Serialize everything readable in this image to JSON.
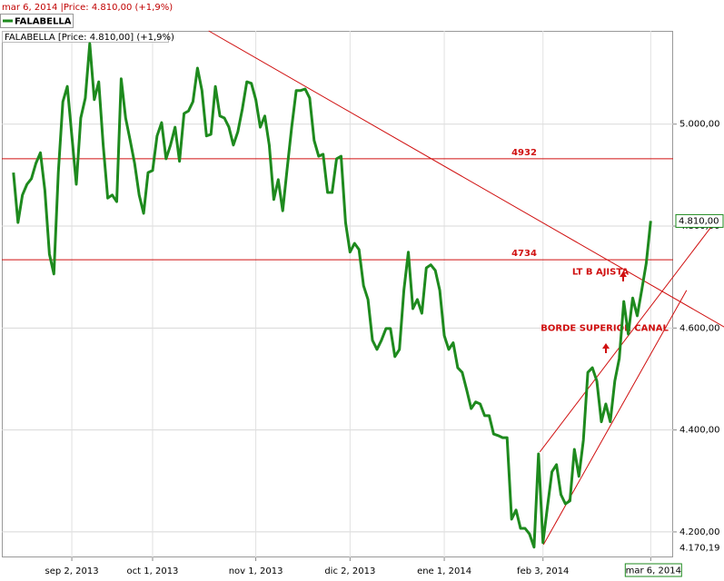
{
  "chart_data": {
    "type": "line",
    "header": "mar 6, 2014 |Price: 4.810,00 (+1,9%)",
    "info": "FALABELLA [Price: 4.810,00] (+1,9%)",
    "series": [
      {
        "name": "FALABELLA",
        "color": "#1e8a1e",
        "values": [
          4905,
          4807,
          4861,
          4882,
          4893,
          4923,
          4944,
          4870,
          4745,
          4706,
          4905,
          5044,
          5074,
          4977,
          4882,
          5012,
          5051,
          5158,
          5048,
          5083,
          4959,
          4855,
          4861,
          4848,
          5089,
          5012,
          4968,
          4923,
          4861,
          4825,
          4905,
          4909,
          4977,
          5003,
          4932,
          4959,
          4994,
          4927,
          5021,
          5026,
          5044,
          5110,
          5066,
          4977,
          4980,
          5074,
          5016,
          5012,
          4994,
          4959,
          4985,
          5030,
          5083,
          5080,
          5048,
          4994,
          5016,
          4959,
          4852,
          4891,
          4830,
          4914,
          4994,
          5066,
          5066,
          5069,
          5051,
          4968,
          4937,
          4941,
          4866,
          4866,
          4932,
          4937,
          4807,
          4749,
          4766,
          4754,
          4683,
          4656,
          4576,
          4558,
          4576,
          4599,
          4599,
          4544,
          4558,
          4674,
          4749,
          4638,
          4656,
          4629,
          4718,
          4724,
          4713,
          4674,
          4585,
          4558,
          4571,
          4522,
          4513,
          4478,
          4442,
          4455,
          4451,
          4428,
          4428,
          4392,
          4389,
          4385,
          4385,
          4225,
          4243,
          4207,
          4207,
          4196,
          4170.19,
          4353,
          4179,
          4250,
          4318,
          4332,
          4273,
          4255,
          4261,
          4362,
          4309,
          4380,
          4513,
          4522,
          4496,
          4416,
          4451,
          4416,
          4496,
          4540,
          4652,
          4588,
          4659,
          4624,
          4674,
          4727,
          4810
        ]
      }
    ],
    "xlim": [
      -2.6,
      147
    ],
    "xticks": [
      {
        "value": 13,
        "label": "sep 2, 2013"
      },
      {
        "value": 31,
        "label": "oct 1, 2013"
      },
      {
        "value": 54,
        "label": "nov 1, 2013"
      },
      {
        "value": 75,
        "label": "dic 2, 2013"
      },
      {
        "value": 96,
        "label": "ene 1, 2014"
      },
      {
        "value": 118,
        "label": "feb 3, 2014"
      },
      {
        "value": 142,
        "label": "mar 6, 2014"
      }
    ],
    "ylim": [
      4150,
      5183
    ],
    "yticks": [
      {
        "value": 4200,
        "label": "4.200,00"
      },
      {
        "value": 4400,
        "label": "4.400,00"
      },
      {
        "value": 4600,
        "label": "4.600,00"
      },
      {
        "value": 4800,
        "label": "4.800,00"
      },
      {
        "value": 5000,
        "label": "5.000,00"
      }
    ],
    "grid": true,
    "last_price": {
      "value": 4810,
      "label": "4.810,00"
    },
    "low": {
      "value": 4170.19,
      "label": "4.170,19"
    },
    "hlines": [
      4932,
      4734
    ],
    "line_color": "#d01010",
    "trendlines": [
      {
        "start": [
          43.5,
          5183
        ],
        "end": [
          158.4,
          4602
        ]
      },
      {
        "start": [
          117.3,
          4357
        ],
        "end": [
          157,
          4816
        ]
      },
      {
        "start": [
          118.1,
          4175
        ],
        "end": [
          150,
          4674
        ]
      }
    ],
    "annotations": [
      {
        "text": "LT B AJISTA",
        "at": [
          124.5,
          4710
        ]
      },
      {
        "text": "BORDE SUPERIOR CANAL",
        "at": [
          117.5,
          4600
        ]
      }
    ]
  }
}
